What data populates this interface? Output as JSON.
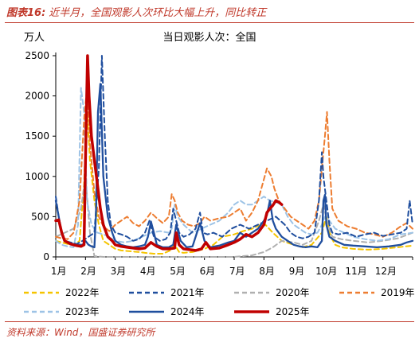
{
  "header": {
    "fig_no": "图表16:",
    "title": "近半月，全国观影人次环比大幅上升，同比转正"
  },
  "footer": {
    "source": "资料来源：Wind，国盛证券研究所"
  },
  "chart_data": {
    "type": "line",
    "title": "当日观影人次：全国",
    "ylabel": "万人",
    "xlabel": "",
    "ylim": [
      0,
      2500
    ],
    "yticks": [
      0,
      500,
      1000,
      1500,
      2000,
      2500
    ],
    "xlim": [
      1,
      13
    ],
    "x_tick_labels": [
      "1月",
      "2月",
      "3月",
      "4月",
      "5月",
      "6月",
      "7月",
      "8月",
      "9月",
      "10月",
      "11月",
      "12月"
    ],
    "grid": false,
    "legend_position": "bottom",
    "series": [
      {
        "name": "2022年",
        "color": "#f5c400",
        "dash": "dashed",
        "width": 2,
        "x": [
          1.0,
          1.2,
          1.4,
          1.6,
          1.8,
          1.95,
          2.05,
          2.15,
          2.3,
          2.45,
          2.6,
          2.8,
          3.0,
          3.2,
          3.5,
          3.8,
          4.0,
          4.3,
          4.6,
          4.85,
          5.0,
          5.15,
          5.3,
          5.6,
          6.0,
          6.3,
          6.6,
          7.0,
          7.3,
          7.6,
          8.0,
          8.3,
          8.6,
          9.0,
          9.3,
          9.6,
          9.95,
          10.1,
          10.25,
          10.4,
          10.6,
          11.0,
          11.5,
          12.0,
          12.5,
          13.0
        ],
        "y": [
          200,
          180,
          160,
          150,
          200,
          900,
          1850,
          1200,
          700,
          400,
          200,
          150,
          100,
          80,
          70,
          60,
          50,
          40,
          40,
          80,
          150,
          60,
          50,
          60,
          100,
          150,
          250,
          280,
          320,
          350,
          420,
          300,
          200,
          150,
          120,
          150,
          300,
          500,
          250,
          150,
          120,
          100,
          90,
          100,
          120,
          140
        ]
      },
      {
        "name": "2021年",
        "color": "#1f4e9e",
        "dash": "dashed",
        "width": 2,
        "x": [
          1.0,
          1.1,
          1.2,
          1.3,
          1.5,
          1.7,
          1.9,
          2.1,
          2.3,
          2.45,
          2.55,
          2.65,
          2.75,
          2.85,
          3.0,
          3.2,
          3.4,
          3.6,
          3.8,
          4.0,
          4.15,
          4.3,
          4.5,
          4.7,
          4.85,
          4.95,
          5.05,
          5.15,
          5.3,
          5.5,
          5.7,
          5.85,
          5.95,
          6.1,
          6.3,
          6.6,
          6.9,
          7.2,
          7.5,
          7.8,
          8.1,
          8.4,
          8.7,
          8.9,
          9.1,
          9.3,
          9.5,
          9.7,
          9.85,
          9.95,
          10.0,
          10.1,
          10.2,
          10.3,
          10.5,
          10.8,
          11.1,
          11.4,
          11.7,
          12.0,
          12.3,
          12.6,
          12.8,
          12.9,
          13.0
        ],
        "y": [
          750,
          500,
          300,
          200,
          180,
          160,
          200,
          250,
          300,
          1100,
          2600,
          1500,
          700,
          400,
          300,
          280,
          250,
          200,
          220,
          300,
          450,
          250,
          200,
          220,
          300,
          600,
          450,
          300,
          250,
          280,
          350,
          550,
          300,
          280,
          300,
          250,
          350,
          400,
          350,
          400,
          450,
          500,
          400,
          300,
          250,
          230,
          250,
          300,
          700,
          1300,
          1000,
          700,
          400,
          300,
          280,
          300,
          250,
          280,
          300,
          260,
          280,
          300,
          350,
          700,
          400
        ]
      },
      {
        "name": "2020年",
        "color": "#b0b0b0",
        "dash": "dashed",
        "width": 2,
        "x": [
          1.0,
          1.3,
          1.6,
          1.85,
          2.0,
          2.15,
          2.3,
          2.6,
          3.0,
          4.0,
          5.0,
          6.0,
          7.0,
          7.3,
          7.6,
          8.0,
          8.3,
          8.6,
          9.0,
          9.3,
          9.6,
          9.85,
          10.0,
          10.15,
          10.3,
          10.6,
          11.0,
          11.5,
          12.0,
          12.5,
          13.0
        ],
        "y": [
          250,
          300,
          350,
          600,
          1000,
          300,
          10,
          0,
          0,
          0,
          0,
          0,
          0,
          10,
          20,
          60,
          120,
          200,
          180,
          150,
          200,
          450,
          650,
          400,
          250,
          220,
          200,
          180,
          200,
          230,
          300
        ]
      },
      {
        "name": "2019年",
        "color": "#ed7d31",
        "dash": "dashed",
        "width": 2,
        "x": [
          1.0,
          1.2,
          1.4,
          1.6,
          1.8,
          1.95,
          2.05,
          2.15,
          2.3,
          2.45,
          2.6,
          2.8,
          3.0,
          3.2,
          3.4,
          3.6,
          3.8,
          4.0,
          4.2,
          4.4,
          4.6,
          4.8,
          4.9,
          5.0,
          5.1,
          5.25,
          5.45,
          5.65,
          5.85,
          6.0,
          6.2,
          6.5,
          6.8,
          7.0,
          7.2,
          7.4,
          7.6,
          7.8,
          7.95,
          8.1,
          8.25,
          8.35,
          8.5,
          8.7,
          8.9,
          9.1,
          9.3,
          9.5,
          9.7,
          9.85,
          9.95,
          10.05,
          10.12,
          10.2,
          10.3,
          10.5,
          10.8,
          11.1,
          11.4,
          11.7,
          12.0,
          12.3,
          12.6,
          12.8,
          13.0
        ],
        "y": [
          250,
          230,
          220,
          300,
          700,
          1700,
          2100,
          1400,
          800,
          500,
          380,
          320,
          400,
          450,
          500,
          420,
          380,
          450,
          550,
          480,
          420,
          500,
          780,
          700,
          550,
          450,
          400,
          380,
          420,
          500,
          450,
          480,
          500,
          550,
          600,
          450,
          550,
          700,
          900,
          1100,
          1000,
          850,
          700,
          600,
          500,
          450,
          400,
          350,
          450,
          700,
          1100,
          1500,
          1800,
          1200,
          600,
          450,
          380,
          350,
          300,
          280,
          250,
          300,
          380,
          420,
          350
        ]
      },
      {
        "name": "2023年",
        "color": "#9dc3e6",
        "dash": "dashed",
        "width": 2,
        "x": [
          1.0,
          1.2,
          1.4,
          1.6,
          1.75,
          1.85,
          1.95,
          2.05,
          2.2,
          2.4,
          2.6,
          2.8,
          3.0,
          3.3,
          3.6,
          3.9,
          4.2,
          4.5,
          4.8,
          4.9,
          5.0,
          5.1,
          5.3,
          5.6,
          5.9,
          6.2,
          6.5,
          6.8,
          7.0,
          7.2,
          7.4,
          7.6,
          7.8,
          8.0,
          8.2,
          8.4,
          8.6,
          8.8,
          9.0,
          9.2,
          9.4,
          9.6,
          9.8,
          9.95,
          10.05,
          10.2,
          10.4,
          10.7,
          11.0,
          11.4,
          11.8,
          12.2,
          12.6,
          13.0
        ],
        "y": [
          200,
          150,
          130,
          120,
          400,
          2100,
          1800,
          700,
          400,
          300,
          280,
          250,
          200,
          180,
          200,
          250,
          300,
          320,
          300,
          350,
          650,
          500,
          400,
          300,
          350,
          400,
          450,
          550,
          650,
          700,
          650,
          650,
          700,
          750,
          700,
          680,
          650,
          500,
          400,
          350,
          300,
          280,
          300,
          400,
          500,
          450,
          350,
          300,
          250,
          220,
          200,
          220,
          280,
          300
        ]
      },
      {
        "name": "2024年",
        "color": "#1f4e9e",
        "dash": "solid",
        "width": 2.3,
        "x": [
          1.0,
          1.1,
          1.2,
          1.3,
          1.5,
          1.7,
          1.9,
          2.0,
          2.1,
          2.2,
          2.3,
          2.35,
          2.42,
          2.5,
          2.6,
          2.75,
          2.9,
          3.0,
          3.2,
          3.4,
          3.6,
          3.8,
          4.0,
          4.1,
          4.2,
          4.3,
          4.4,
          4.6,
          4.8,
          4.95,
          5.05,
          5.2,
          5.4,
          5.6,
          5.85,
          6.0,
          6.2,
          6.5,
          6.8,
          7.0,
          7.2,
          7.4,
          7.6,
          7.8,
          8.0,
          8.1,
          8.2,
          8.3,
          8.4,
          8.5,
          8.6,
          8.8,
          9.0,
          9.2,
          9.4,
          9.6,
          9.8,
          9.95,
          10.0,
          10.05,
          10.1,
          10.2,
          10.4,
          10.7,
          11.0,
          11.4,
          11.8,
          12.2,
          12.6,
          12.8,
          13.0
        ],
        "y": [
          700,
          500,
          300,
          200,
          170,
          150,
          150,
          200,
          150,
          130,
          120,
          500,
          1800,
          2150,
          1000,
          500,
          300,
          200,
          150,
          130,
          120,
          130,
          150,
          250,
          440,
          300,
          150,
          120,
          120,
          150,
          400,
          200,
          120,
          130,
          420,
          200,
          120,
          140,
          180,
          200,
          300,
          250,
          300,
          350,
          450,
          520,
          700,
          450,
          350,
          300,
          250,
          200,
          150,
          130,
          120,
          130,
          120,
          200,
          700,
          770,
          400,
          250,
          200,
          150,
          140,
          130,
          120,
          130,
          150,
          180,
          200
        ]
      },
      {
        "name": "2025年",
        "color": "#c00000",
        "dash": "solid",
        "width": 3.5,
        "x": [
          1.0,
          1.1,
          1.2,
          1.3,
          1.5,
          1.7,
          1.85,
          1.95,
          2.0,
          2.07,
          2.12,
          2.2,
          2.3,
          2.4,
          2.5,
          2.6,
          2.75,
          2.9,
          3.0,
          3.2,
          3.4,
          3.6,
          3.8,
          4.0,
          4.2,
          4.4,
          4.6,
          4.8,
          5.0,
          5.05,
          5.15,
          5.3,
          5.5,
          5.7,
          5.9,
          6.05,
          6.2,
          6.5,
          6.8,
          7.0,
          7.2,
          7.4,
          7.6,
          7.8,
          8.0,
          8.1,
          8.2,
          8.3,
          8.4,
          8.5,
          8.6
        ],
        "y": [
          450,
          460,
          300,
          200,
          160,
          140,
          130,
          150,
          1200,
          2500,
          2000,
          1500,
          1200,
          900,
          600,
          400,
          250,
          200,
          150,
          130,
          120,
          110,
          100,
          110,
          180,
          130,
          100,
          100,
          110,
          300,
          150,
          100,
          90,
          80,
          100,
          180,
          100,
          110,
          150,
          180,
          220,
          280,
          250,
          300,
          400,
          550,
          600,
          640,
          700,
          680,
          650
        ]
      }
    ]
  }
}
